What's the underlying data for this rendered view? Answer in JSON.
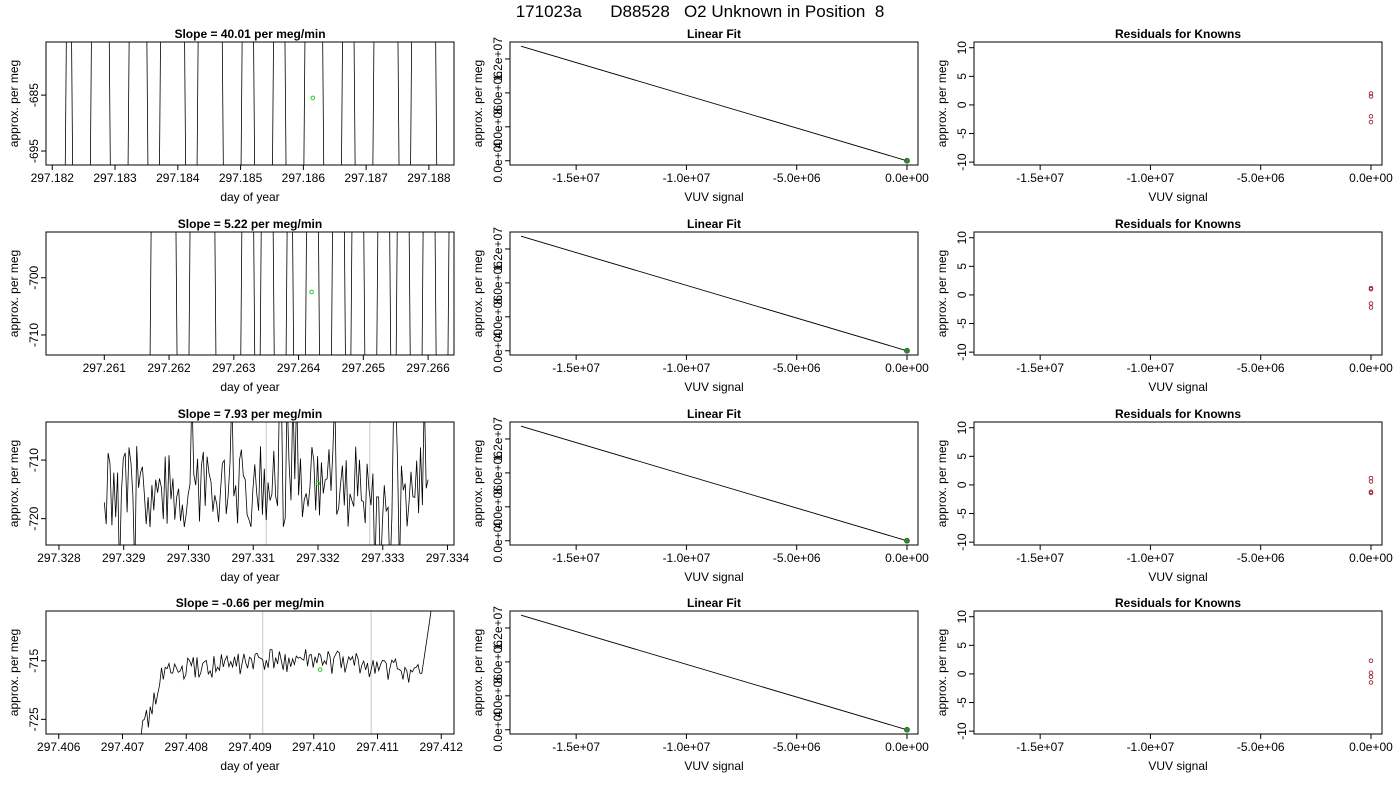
{
  "page_title": "171023a      D88528   O2 Unknown in Position  8",
  "chart_data": [
    {
      "type": "line",
      "title": "Slope =  40.01  per meg/min",
      "xlabel": "day of year",
      "ylabel": "approx. per meg",
      "xlim": [
        297.1819,
        297.1884
      ],
      "ylim": [
        -697.5,
        -675.5
      ],
      "xticks": [
        "297.182",
        "297.183",
        "297.184",
        "297.185",
        "297.186",
        "297.187",
        "297.188"
      ],
      "yticks": [
        "-685",
        "-695"
      ],
      "pattern": "spikes",
      "x": [
        297.1822,
        297.1823,
        297.1826,
        297.1829,
        297.1832,
        297.1835,
        297.1837,
        297.1841,
        297.1843,
        297.1847,
        297.185,
        297.1852,
        297.1855,
        297.1857,
        297.186,
        297.1863,
        297.1866,
        297.1868,
        297.1871,
        297.1875,
        297.1877,
        297.1881
      ],
      "marker": {
        "x": 297.18615,
        "y": -685.5
      },
      "vlines": []
    },
    {
      "type": "line",
      "title": "Linear Fit",
      "xlabel": "VUV signal",
      "ylabel": "approx. per meg",
      "xlim": [
        -18000000,
        500000
      ],
      "ylim": [
        -500000,
        14000000
      ],
      "xticks": [
        "-1.5e+07",
        "-1.0e+07",
        "-5.0e+06",
        "0.0e+00"
      ],
      "yticks": [
        "0.0e+00",
        "4.0e+06",
        "8.0e+06",
        "1.2e+07"
      ],
      "x": [
        -17500000,
        0
      ],
      "y": [
        13500000,
        0
      ],
      "point": {
        "x": 0,
        "y": 0
      }
    },
    {
      "type": "scatter",
      "title": "Residuals for Knowns",
      "xlabel": "VUV signal",
      "ylabel": "approx. per meg",
      "xlim": [
        -18000000,
        500000
      ],
      "ylim": [
        -10.5,
        11
      ],
      "xticks": [
        "-1.5e+07",
        "-1.0e+07",
        "-5.0e+06",
        "0.0e+00"
      ],
      "yticks": [
        "-10",
        "-5",
        "0",
        "5",
        "10"
      ],
      "x": [
        0,
        0,
        0,
        0
      ],
      "y": [
        2.0,
        1.5,
        -2.0,
        -3.0
      ]
    },
    {
      "type": "line",
      "title": "Slope =  5.22  per meg/min",
      "xlabel": "day of year",
      "ylabel": "approx. per meg",
      "xlim": [
        297.2601,
        297.2664
      ],
      "ylim": [
        -713.5,
        -692
      ],
      "xticks": [
        "297.261",
        "297.262",
        "297.263",
        "297.264",
        "297.265",
        "297.266"
      ],
      "yticks": [
        "-700",
        "-710"
      ],
      "pattern": "spikes",
      "x": [
        297.2617,
        297.2621,
        297.2623,
        297.2627,
        297.2631,
        297.2633,
        297.2634,
        297.2636,
        297.2638,
        297.2639,
        297.2641,
        297.2643,
        297.2645,
        297.2647,
        297.2648,
        297.265,
        297.2652,
        297.2654,
        297.2655,
        297.2657,
        297.2659,
        297.2661,
        297.2663
      ],
      "marker": {
        "x": 297.2642,
        "y": -702.5
      },
      "vlines": []
    },
    {
      "type": "line",
      "title": "Linear Fit",
      "xlabel": "VUV signal",
      "ylabel": "approx. per meg",
      "xlim": [
        -18000000,
        500000
      ],
      "ylim": [
        -500000,
        14000000
      ],
      "xticks": [
        "-1.5e+07",
        "-1.0e+07",
        "-5.0e+06",
        "0.0e+00"
      ],
      "yticks": [
        "0.0e+00",
        "4.0e+06",
        "8.0e+06",
        "1.2e+07"
      ],
      "x": [
        -17500000,
        0
      ],
      "y": [
        13500000,
        0
      ],
      "point": {
        "x": 0,
        "y": 0
      }
    },
    {
      "type": "scatter",
      "title": "Residuals for Knowns",
      "xlabel": "VUV signal",
      "ylabel": "approx. per meg",
      "xlim": [
        -18000000,
        500000
      ],
      "ylim": [
        -10.5,
        11
      ],
      "xticks": [
        "-1.5e+07",
        "-1.0e+07",
        "-5.0e+06",
        "0.0e+00"
      ],
      "yticks": [
        "-10",
        "-5",
        "0",
        "5",
        "10"
      ],
      "x": [
        0,
        0,
        0,
        0
      ],
      "y": [
        1.2,
        1.0,
        -1.5,
        -2.2
      ]
    },
    {
      "type": "line",
      "title": "Slope =  7.93  per meg/min",
      "xlabel": "day of year",
      "ylabel": "approx. per meg",
      "xlim": [
        297.3278,
        297.3341
      ],
      "ylim": [
        -724.5,
        -703.5
      ],
      "xticks": [
        "297.328",
        "297.329",
        "297.330",
        "297.331",
        "297.332",
        "297.333",
        "297.334"
      ],
      "yticks": [
        "-710",
        "-720"
      ],
      "pattern": "noisy",
      "x0": 297.3287,
      "x1": 297.3337,
      "center": -714.5,
      "amp": 7,
      "marker": {
        "x": 297.332,
        "y": -714.0
      },
      "vlines": [
        297.3312,
        297.3328
      ]
    },
    {
      "type": "line",
      "title": "Linear Fit",
      "xlabel": "VUV signal",
      "ylabel": "approx. per meg",
      "xlim": [
        -18000000,
        500000
      ],
      "ylim": [
        -500000,
        14000000
      ],
      "xticks": [
        "-1.5e+07",
        "-1.0e+07",
        "-5.0e+06",
        "0.0e+00"
      ],
      "yticks": [
        "0.0e+00",
        "4.0e+06",
        "8.0e+06",
        "1.2e+07"
      ],
      "x": [
        -17500000,
        0
      ],
      "y": [
        13500000,
        0
      ],
      "point": {
        "x": 0,
        "y": 0
      }
    },
    {
      "type": "scatter",
      "title": "Residuals for Knowns",
      "xlabel": "VUV signal",
      "ylabel": "approx. per meg",
      "xlim": [
        -18000000,
        500000
      ],
      "ylim": [
        -10.5,
        11
      ],
      "xticks": [
        "-1.5e+07",
        "-1.0e+07",
        "-5.0e+06",
        "0.0e+00"
      ],
      "yticks": [
        "-10",
        "-5",
        "0",
        "5",
        "10"
      ],
      "x": [
        0,
        0,
        0,
        0
      ],
      "y": [
        1.2,
        0.6,
        -1.2,
        -1.4
      ]
    },
    {
      "type": "line",
      "title": "Slope =  -0.66  per meg/min",
      "xlabel": "day of year",
      "ylabel": "approx. per meg",
      "xlim": [
        297.4058,
        297.4122
      ],
      "ylim": [
        -727.5,
        -706.5
      ],
      "xticks": [
        "297.406",
        "297.407",
        "297.408",
        "297.409",
        "297.410",
        "297.411",
        "297.412"
      ],
      "yticks": [
        "-715",
        "-725"
      ],
      "pattern": "drift",
      "x0": 297.4072,
      "x1": 297.4119,
      "marker": {
        "x": 297.4101,
        "y": -716.5
      },
      "vlines": [
        297.4092,
        297.4109
      ]
    },
    {
      "type": "line",
      "title": "Linear Fit",
      "xlabel": "VUV signal",
      "ylabel": "approx. per meg",
      "xlim": [
        -18000000,
        500000
      ],
      "ylim": [
        -500000,
        14000000
      ],
      "xticks": [
        "-1.5e+07",
        "-1.0e+07",
        "-5.0e+06",
        "0.0e+00"
      ],
      "yticks": [
        "0.0e+00",
        "4.0e+06",
        "8.0e+06",
        "1.2e+07"
      ],
      "x": [
        -17500000,
        0
      ],
      "y": [
        13500000,
        0
      ],
      "point": {
        "x": 0,
        "y": 0
      }
    },
    {
      "type": "scatter",
      "title": "Residuals for Knowns",
      "xlabel": "VUV signal",
      "ylabel": "approx. per meg",
      "xlim": [
        -18000000,
        500000
      ],
      "ylim": [
        -10.5,
        11
      ],
      "xticks": [
        "-1.5e+07",
        "-1.0e+07",
        "-5.0e+06",
        "0.0e+00"
      ],
      "yticks": [
        "-10",
        "-5",
        "0",
        "5",
        "10"
      ],
      "x": [
        0,
        0,
        0,
        0
      ],
      "y": [
        2.3,
        0.2,
        -0.5,
        -1.5
      ]
    }
  ]
}
